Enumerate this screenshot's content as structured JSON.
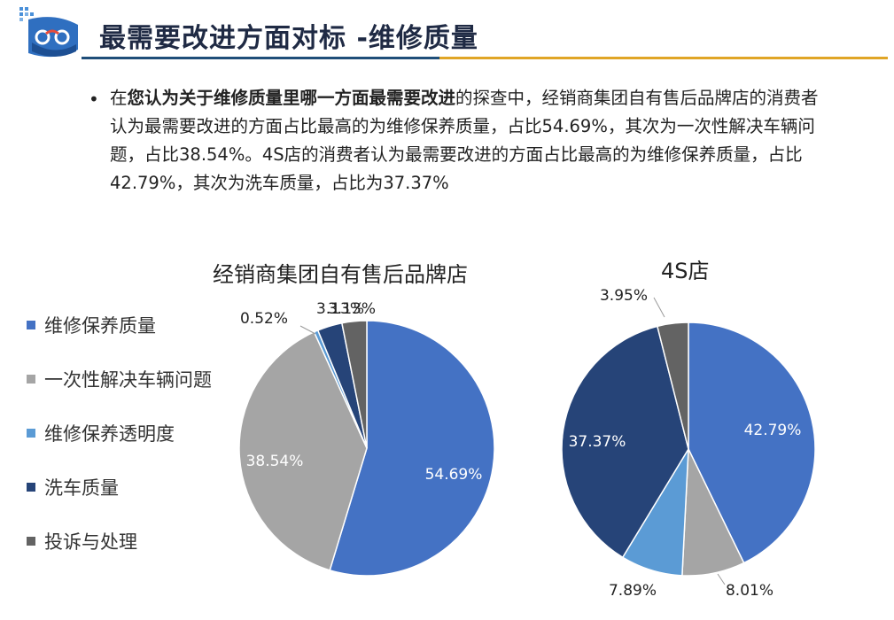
{
  "header": {
    "title": "最需要改进方面对标 -维修质量"
  },
  "summary": {
    "prefix": "在",
    "bold": "您认为关于维修质量里哪一方面最需要改进",
    "rest": "的探查中，经销商集团自有售后品牌店的消费者认为最需要改进的方面占比最高的为维修保养质量，占比54.69%，其次为一次性解决车辆问题，占比38.54%。4S店的消费者认为最需要改进的方面占比最高的为维修保养质量，占比42.79%，其次为洗车质量，占比为37.37%"
  },
  "legend": {
    "items": [
      {
        "label": "维修保养质量",
        "color": "#4472c4"
      },
      {
        "label": "一次性解决车辆问题",
        "color": "#a5a5a5"
      },
      {
        "label": "维修保养透明度",
        "color": "#5b9bd5"
      },
      {
        "label": "洗车质量",
        "color": "#264478"
      },
      {
        "label": "投诉与处理",
        "color": "#636363"
      }
    ]
  },
  "chart_data": [
    {
      "type": "pie",
      "title": "经销商集团自有售后品牌店",
      "categories": [
        "维修保养质量",
        "一次性解决车辆问题",
        "维修保养透明度",
        "洗车质量",
        "投诉与处理"
      ],
      "values": [
        54.69,
        38.54,
        0.52,
        3.13,
        3.13
      ],
      "labels": [
        "54.69%",
        "38.54%",
        "0.52%",
        "3.13%",
        "3.13%"
      ],
      "colors": [
        "#4472c4",
        "#a5a5a5",
        "#5b9bd5",
        "#264478",
        "#636363"
      ]
    },
    {
      "type": "pie",
      "title": "4S店",
      "categories": [
        "维修保养质量",
        "一次性解决车辆问题",
        "维修保养透明度",
        "洗车质量",
        "投诉与处理"
      ],
      "values": [
        42.79,
        8.01,
        7.89,
        37.37,
        3.95
      ],
      "labels": [
        "42.79%",
        "8.01%",
        "7.89%",
        "37.37%",
        "3.95%"
      ],
      "colors": [
        "#4472c4",
        "#a5a5a5",
        "#5b9bd5",
        "#264478",
        "#636363"
      ]
    }
  ]
}
